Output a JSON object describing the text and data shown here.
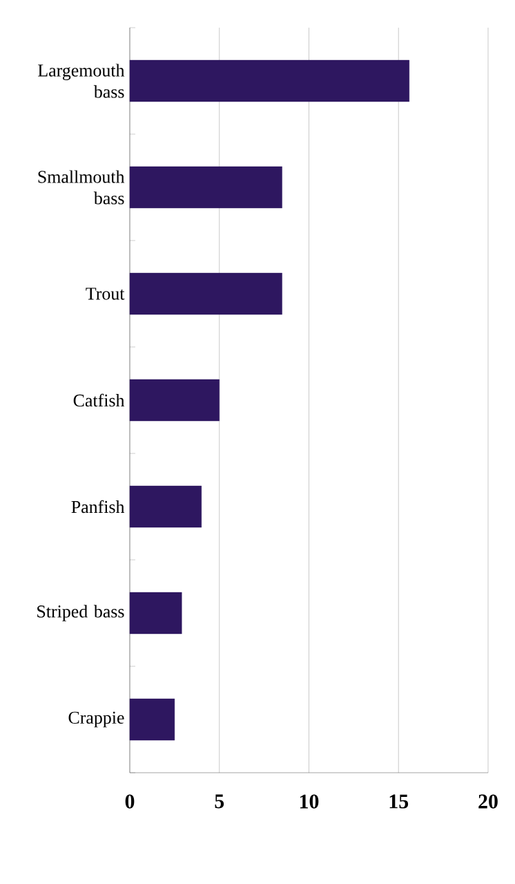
{
  "chart_data": {
    "type": "bar",
    "orientation": "horizontal",
    "categories": [
      "Largemouth bass",
      "Smallmouth bass",
      "Trout",
      "Catfish",
      "Panfish",
      "Striped bass",
      "Crappie"
    ],
    "values": [
      15.6,
      8.5,
      8.5,
      5.0,
      4.0,
      2.9,
      2.5
    ],
    "color": "#2e1760",
    "xlim": [
      0,
      20
    ],
    "xticks": [
      0,
      5,
      10,
      15,
      20
    ],
    "grid": "x"
  }
}
